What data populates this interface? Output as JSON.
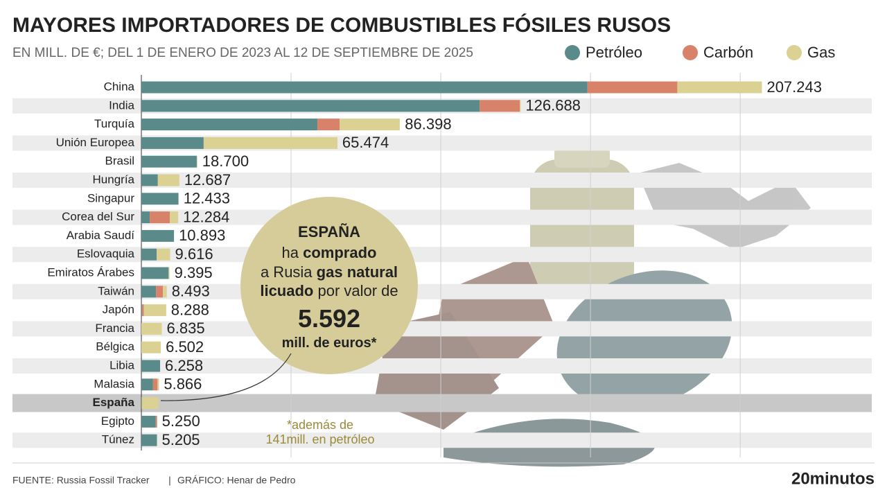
{
  "chart_data": {
    "type": "stacked-bar-horizontal",
    "title": "MAYORES IMPORTADORES DE COMBUSTIBLES FÓSILES RUSOS",
    "subtitle": "EN MILL. DE €; DEL 1 DE ENERO DE 2023 AL 12 DE SEPTIEMBRE DE 2025",
    "categories": [
      "China",
      "India",
      "Turquía",
      "Unión Europea",
      "Brasil",
      "Hungría",
      "Singapur",
      "Corea del Sur",
      "Arabia Saudí",
      "Eslovaquia",
      "Emiratos Árabes",
      "Taiwán",
      "Japón",
      "Francia",
      "Bélgica",
      "Libia",
      "Malasia",
      "España",
      "Egipto",
      "Túnez"
    ],
    "highlight": "España",
    "series": [
      {
        "name": "Petróleo",
        "color": "#5b8a8a",
        "values": [
          149000,
          113000,
          58800,
          20800,
          18500,
          5500,
          12400,
          2800,
          10900,
          5100,
          9100,
          4900,
          200,
          0,
          0,
          6258,
          3900,
          141,
          4800,
          5205
        ]
      },
      {
        "name": "Carbón",
        "color": "#d9826a",
        "values": [
          30000,
          13400,
          7400,
          0,
          0,
          0,
          0,
          6700,
          0,
          0,
          0,
          2300,
          600,
          0,
          0,
          0,
          1500,
          0,
          450,
          0
        ]
      },
      {
        "name": "Gas",
        "color": "#dbd193",
        "values": [
          28243,
          300,
          20100,
          44700,
          200,
          7200,
          0,
          2800,
          0,
          4500,
          300,
          1300,
          7500,
          6835,
          6502,
          0,
          500,
          5592,
          0,
          0
        ]
      }
    ],
    "totals": [
      207243,
      126688,
      86398,
      65474,
      18700,
      12687,
      12433,
      12284,
      10893,
      9616,
      9395,
      8493,
      8288,
      6835,
      6502,
      6258,
      5866,
      null,
      5250,
      5205
    ],
    "value_labels": [
      "207.243",
      "126.688",
      "86.398",
      "65.474",
      "18.700",
      "12.687",
      "12.433",
      "12.284",
      "10.893",
      "9.616",
      "9.395",
      "8.493",
      "8.288",
      "6.835",
      "6.502",
      "6.258",
      "5.866",
      null,
      "5.250",
      "5.205"
    ],
    "xlim": [
      0,
      240000
    ],
    "xticks": [
      50000,
      100000,
      150000,
      200000
    ],
    "grid": true,
    "legend": "top-right",
    "annotation": [
      [
        {
          "text": "ESPAÑA",
          "bold": true
        }
      ],
      [
        {
          "text": "ha ",
          "bold": false
        },
        {
          "text": "comprado",
          "bold": true
        }
      ],
      [
        {
          "text": "a Rusia ",
          "bold": false
        },
        {
          "text": "gas natural",
          "bold": true
        }
      ],
      [
        {
          "text": "licuado",
          "bold": true
        },
        {
          "text": " por valor de",
          "bold": false
        }
      ],
      [
        {
          "text": "5.592",
          "bold": true
        }
      ],
      [
        {
          "text": "mill. de euros*",
          "bold": true
        }
      ]
    ],
    "note": [
      "*además de",
      "141mill. en petróleo"
    ],
    "source": "FUENTE: Russia Fossil Tracker",
    "separator": "|",
    "credit": "GRÁFICO: Henar de Pedro",
    "brand": "20minutos"
  }
}
